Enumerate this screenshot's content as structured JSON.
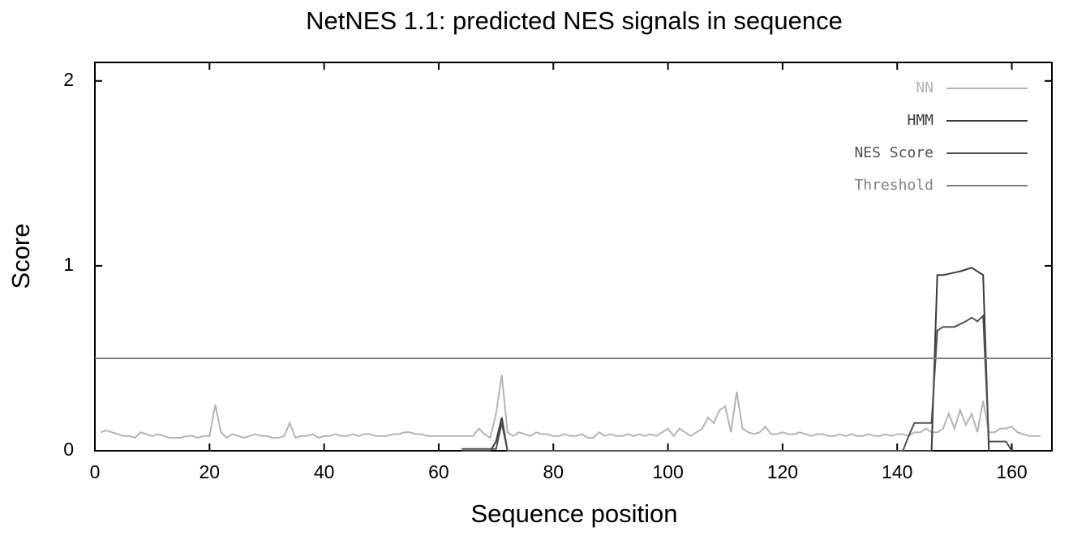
{
  "chart_data": {
    "type": "line",
    "title": "NetNES 1.1: predicted NES signals in sequence",
    "x_label": "Sequence position",
    "y_label": "Score",
    "xlim": [
      0,
      167
    ],
    "ylim": [
      0,
      2.1
    ],
    "xticks": [
      0,
      20,
      40,
      60,
      80,
      100,
      120,
      140,
      160
    ],
    "yticks": [
      0,
      1,
      2
    ],
    "legend": "upper right",
    "series": [
      {
        "name": "NN",
        "color": "#b4b4b4",
        "x": [
          1,
          2,
          3,
          4,
          5,
          6,
          7,
          8,
          9,
          10,
          11,
          12,
          13,
          14,
          15,
          16,
          17,
          18,
          19,
          20,
          21,
          22,
          23,
          24,
          25,
          26,
          27,
          28,
          29,
          30,
          31,
          32,
          33,
          34,
          35,
          36,
          37,
          38,
          39,
          40,
          41,
          42,
          43,
          44,
          45,
          46,
          47,
          48,
          49,
          50,
          51,
          52,
          53,
          54,
          55,
          56,
          57,
          58,
          59,
          60,
          61,
          62,
          63,
          64,
          65,
          66,
          67,
          68,
          69,
          70,
          71,
          72,
          73,
          74,
          75,
          76,
          77,
          78,
          79,
          80,
          81,
          82,
          83,
          84,
          85,
          86,
          87,
          88,
          89,
          90,
          91,
          92,
          93,
          94,
          95,
          96,
          97,
          98,
          99,
          100,
          101,
          102,
          103,
          104,
          105,
          106,
          107,
          108,
          109,
          110,
          111,
          112,
          113,
          114,
          115,
          116,
          117,
          118,
          119,
          120,
          121,
          122,
          123,
          124,
          125,
          126,
          127,
          128,
          129,
          130,
          131,
          132,
          133,
          134,
          135,
          136,
          137,
          138,
          139,
          140,
          141,
          142,
          143,
          144,
          145,
          146,
          147,
          148,
          149,
          150,
          151,
          152,
          153,
          154,
          155,
          156,
          157,
          158,
          159,
          160,
          161,
          162,
          163,
          164,
          165
        ],
        "values": [
          0.1,
          0.11,
          0.1,
          0.09,
          0.08,
          0.08,
          0.07,
          0.1,
          0.09,
          0.08,
          0.09,
          0.08,
          0.07,
          0.07,
          0.07,
          0.08,
          0.08,
          0.07,
          0.08,
          0.08,
          0.25,
          0.1,
          0.07,
          0.09,
          0.08,
          0.07,
          0.08,
          0.09,
          0.08,
          0.08,
          0.07,
          0.07,
          0.08,
          0.15,
          0.07,
          0.08,
          0.08,
          0.09,
          0.07,
          0.08,
          0.08,
          0.09,
          0.08,
          0.08,
          0.09,
          0.08,
          0.09,
          0.09,
          0.08,
          0.08,
          0.08,
          0.09,
          0.09,
          0.1,
          0.1,
          0.09,
          0.09,
          0.08,
          0.08,
          0.08,
          0.08,
          0.08,
          0.08,
          0.08,
          0.08,
          0.08,
          0.12,
          0.09,
          0.07,
          0.2,
          0.41,
          0.1,
          0.08,
          0.1,
          0.09,
          0.08,
          0.1,
          0.09,
          0.09,
          0.08,
          0.08,
          0.09,
          0.08,
          0.08,
          0.09,
          0.07,
          0.07,
          0.1,
          0.08,
          0.09,
          0.08,
          0.08,
          0.09,
          0.08,
          0.09,
          0.08,
          0.09,
          0.08,
          0.1,
          0.12,
          0.08,
          0.12,
          0.1,
          0.08,
          0.1,
          0.12,
          0.18,
          0.15,
          0.22,
          0.24,
          0.1,
          0.32,
          0.12,
          0.1,
          0.09,
          0.1,
          0.13,
          0.09,
          0.09,
          0.1,
          0.09,
          0.09,
          0.1,
          0.09,
          0.08,
          0.09,
          0.09,
          0.08,
          0.08,
          0.09,
          0.08,
          0.09,
          0.08,
          0.08,
          0.09,
          0.08,
          0.08,
          0.09,
          0.08,
          0.09,
          0.09,
          0.08,
          0.1,
          0.1,
          0.12,
          0.1,
          0.1,
          0.12,
          0.2,
          0.12,
          0.22,
          0.14,
          0.2,
          0.1,
          0.27,
          0.1,
          0.1,
          0.12,
          0.12,
          0.13,
          0.1,
          0.09,
          0.08,
          0.08,
          0.08
        ]
      },
      {
        "name": "HMM",
        "color": "#3a3a3a",
        "x": [
          64,
          69,
          70,
          71,
          72,
          146,
          147,
          148,
          151,
          152,
          153,
          154,
          155,
          156
        ],
        "values": [
          0,
          0,
          0.05,
          0.18,
          0,
          0,
          0.95,
          0.95,
          0.97,
          0.98,
          0.99,
          0.97,
          0.95,
          0
        ]
      },
      {
        "name": "NES Score",
        "color": "#505050",
        "x": [
          64,
          70,
          71,
          72,
          141,
          142,
          143,
          146,
          147,
          148,
          150,
          152,
          153,
          154,
          155,
          156,
          157,
          159,
          160
        ],
        "values": [
          0.01,
          0.01,
          0.15,
          0,
          0,
          0.08,
          0.15,
          0.15,
          0.65,
          0.67,
          0.67,
          0.7,
          0.72,
          0.7,
          0.73,
          0.05,
          0.05,
          0.05,
          0
        ]
      },
      {
        "name": "Threshold",
        "color": "#808080",
        "x": [
          0,
          167
        ],
        "values": [
          0.5,
          0.5
        ]
      }
    ]
  }
}
